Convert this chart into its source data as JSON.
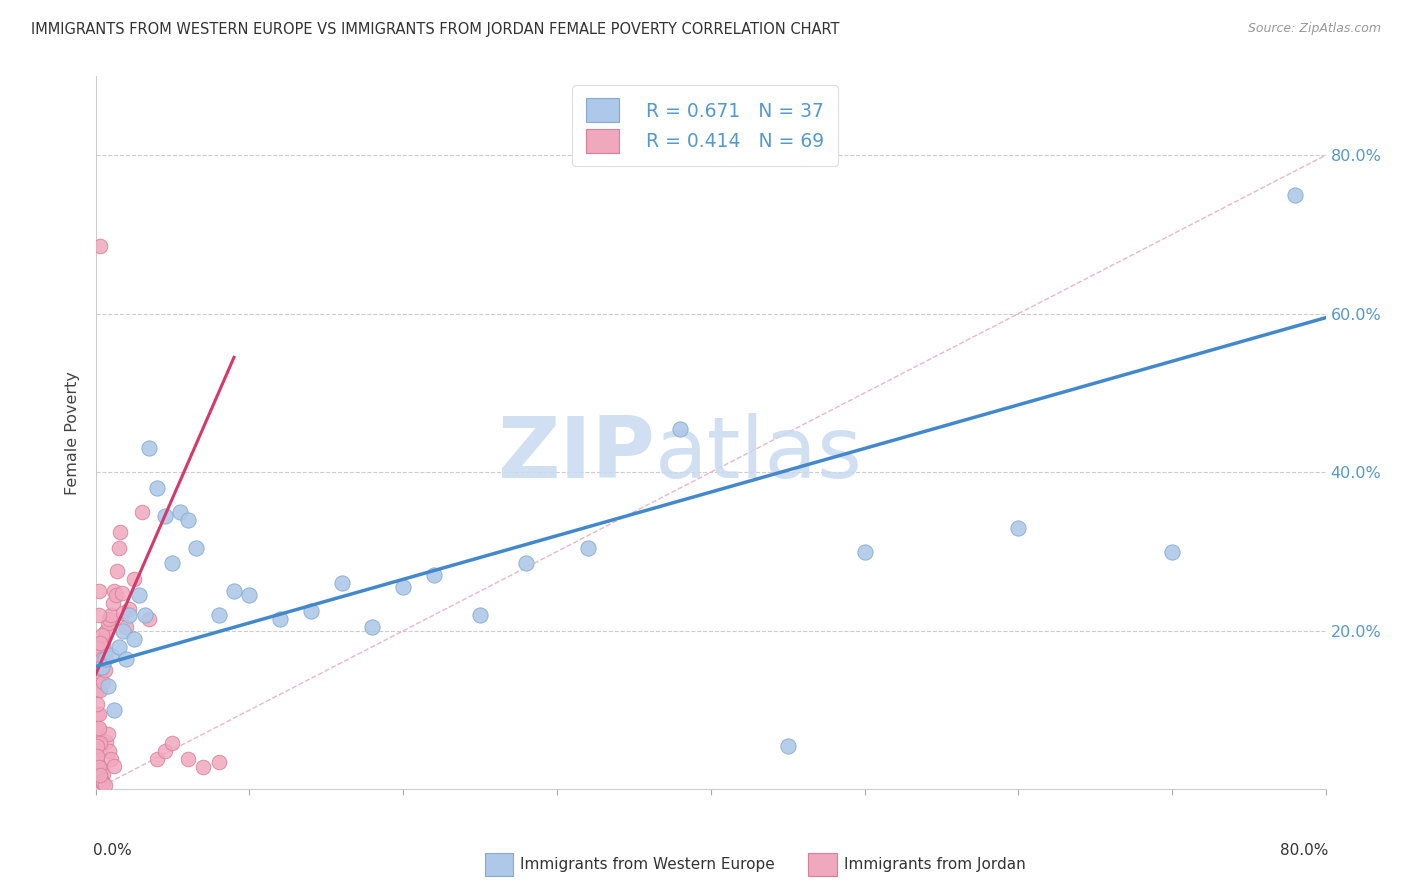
{
  "title": "IMMIGRANTS FROM WESTERN EUROPE VS IMMIGRANTS FROM JORDAN FEMALE POVERTY CORRELATION CHART",
  "source": "Source: ZipAtlas.com",
  "ylabel": "Female Poverty",
  "legend_r1": "R = 0.671",
  "legend_n1": "N = 37",
  "legend_r2": "R = 0.414",
  "legend_n2": "N = 69",
  "color_blue_fill": "#adc8e8",
  "color_blue_edge": "#85aad0",
  "color_pink_fill": "#f0a8be",
  "color_pink_edge": "#d88098",
  "color_blue_line": "#4488cc",
  "color_pink_line": "#d83868",
  "color_ref_line": "#e8b0c0",
  "color_grid": "#cccccc",
  "color_raxis": "#5599cc",
  "watermark_zip": "ZIP",
  "watermark_atlas": "atlas",
  "watermark_color": "#c8daf0",
  "xlim": [
    0.0,
    0.8
  ],
  "ylim": [
    0.0,
    0.9
  ],
  "xticks": [
    0.0,
    0.1,
    0.2,
    0.3,
    0.4,
    0.5,
    0.6,
    0.7,
    0.8
  ],
  "yticks": [
    0.2,
    0.4,
    0.6,
    0.8
  ],
  "ytick_labels": [
    "20.0%",
    "40.0%",
    "60.0%",
    "80.0%"
  ],
  "blue_line_x": [
    0.0,
    0.8
  ],
  "blue_line_y": [
    0.155,
    0.595
  ],
  "pink_line_x": [
    0.0,
    0.09
  ],
  "pink_line_y": [
    0.145,
    0.545
  ],
  "ref_line_x": [
    0.0,
    0.8
  ],
  "ref_line_y": [
    0.0,
    0.8
  ],
  "blue_x": [
    0.004,
    0.006,
    0.008,
    0.01,
    0.012,
    0.015,
    0.018,
    0.02,
    0.022,
    0.025,
    0.028,
    0.032,
    0.035,
    0.04,
    0.045,
    0.05,
    0.055,
    0.06,
    0.065,
    0.08,
    0.09,
    0.1,
    0.12,
    0.14,
    0.16,
    0.18,
    0.2,
    0.22,
    0.25,
    0.28,
    0.32,
    0.38,
    0.45,
    0.5,
    0.6,
    0.7,
    0.78
  ],
  "blue_y": [
    0.155,
    0.165,
    0.13,
    0.17,
    0.1,
    0.18,
    0.2,
    0.165,
    0.22,
    0.19,
    0.245,
    0.22,
    0.43,
    0.38,
    0.345,
    0.285,
    0.35,
    0.34,
    0.305,
    0.22,
    0.25,
    0.245,
    0.215,
    0.225,
    0.26,
    0.205,
    0.255,
    0.27,
    0.22,
    0.285,
    0.305,
    0.455,
    0.055,
    0.3,
    0.33,
    0.3,
    0.75
  ],
  "pink_x": [
    0.001,
    0.001,
    0.001,
    0.002,
    0.002,
    0.002,
    0.003,
    0.003,
    0.003,
    0.003,
    0.004,
    0.004,
    0.004,
    0.005,
    0.005,
    0.005,
    0.005,
    0.006,
    0.006,
    0.006,
    0.007,
    0.007,
    0.008,
    0.008,
    0.009,
    0.009,
    0.01,
    0.01,
    0.011,
    0.012,
    0.012,
    0.013,
    0.014,
    0.015,
    0.016,
    0.017,
    0.018,
    0.02,
    0.022,
    0.025,
    0.03,
    0.035,
    0.04,
    0.045,
    0.05,
    0.06,
    0.07,
    0.08,
    0.003,
    0.002,
    0.004,
    0.001,
    0.002,
    0.003,
    0.001,
    0.002,
    0.001,
    0.001,
    0.002,
    0.003,
    0.004,
    0.005,
    0.006,
    0.002,
    0.003,
    0.004,
    0.001,
    0.002,
    0.003
  ],
  "pink_y": [
    0.155,
    0.125,
    0.095,
    0.16,
    0.135,
    0.075,
    0.17,
    0.148,
    0.125,
    0.05,
    0.175,
    0.152,
    0.025,
    0.182,
    0.158,
    0.135,
    0.02,
    0.195,
    0.17,
    0.15,
    0.2,
    0.06,
    0.21,
    0.07,
    0.215,
    0.048,
    0.22,
    0.038,
    0.235,
    0.25,
    0.03,
    0.245,
    0.275,
    0.305,
    0.325,
    0.248,
    0.222,
    0.205,
    0.228,
    0.265,
    0.35,
    0.215,
    0.038,
    0.048,
    0.058,
    0.038,
    0.028,
    0.035,
    0.685,
    0.25,
    0.195,
    0.178,
    0.095,
    0.058,
    0.108,
    0.078,
    0.055,
    0.035,
    0.012,
    0.015,
    0.01,
    0.008,
    0.005,
    0.22,
    0.185,
    0.165,
    0.042,
    0.028,
    0.018
  ]
}
